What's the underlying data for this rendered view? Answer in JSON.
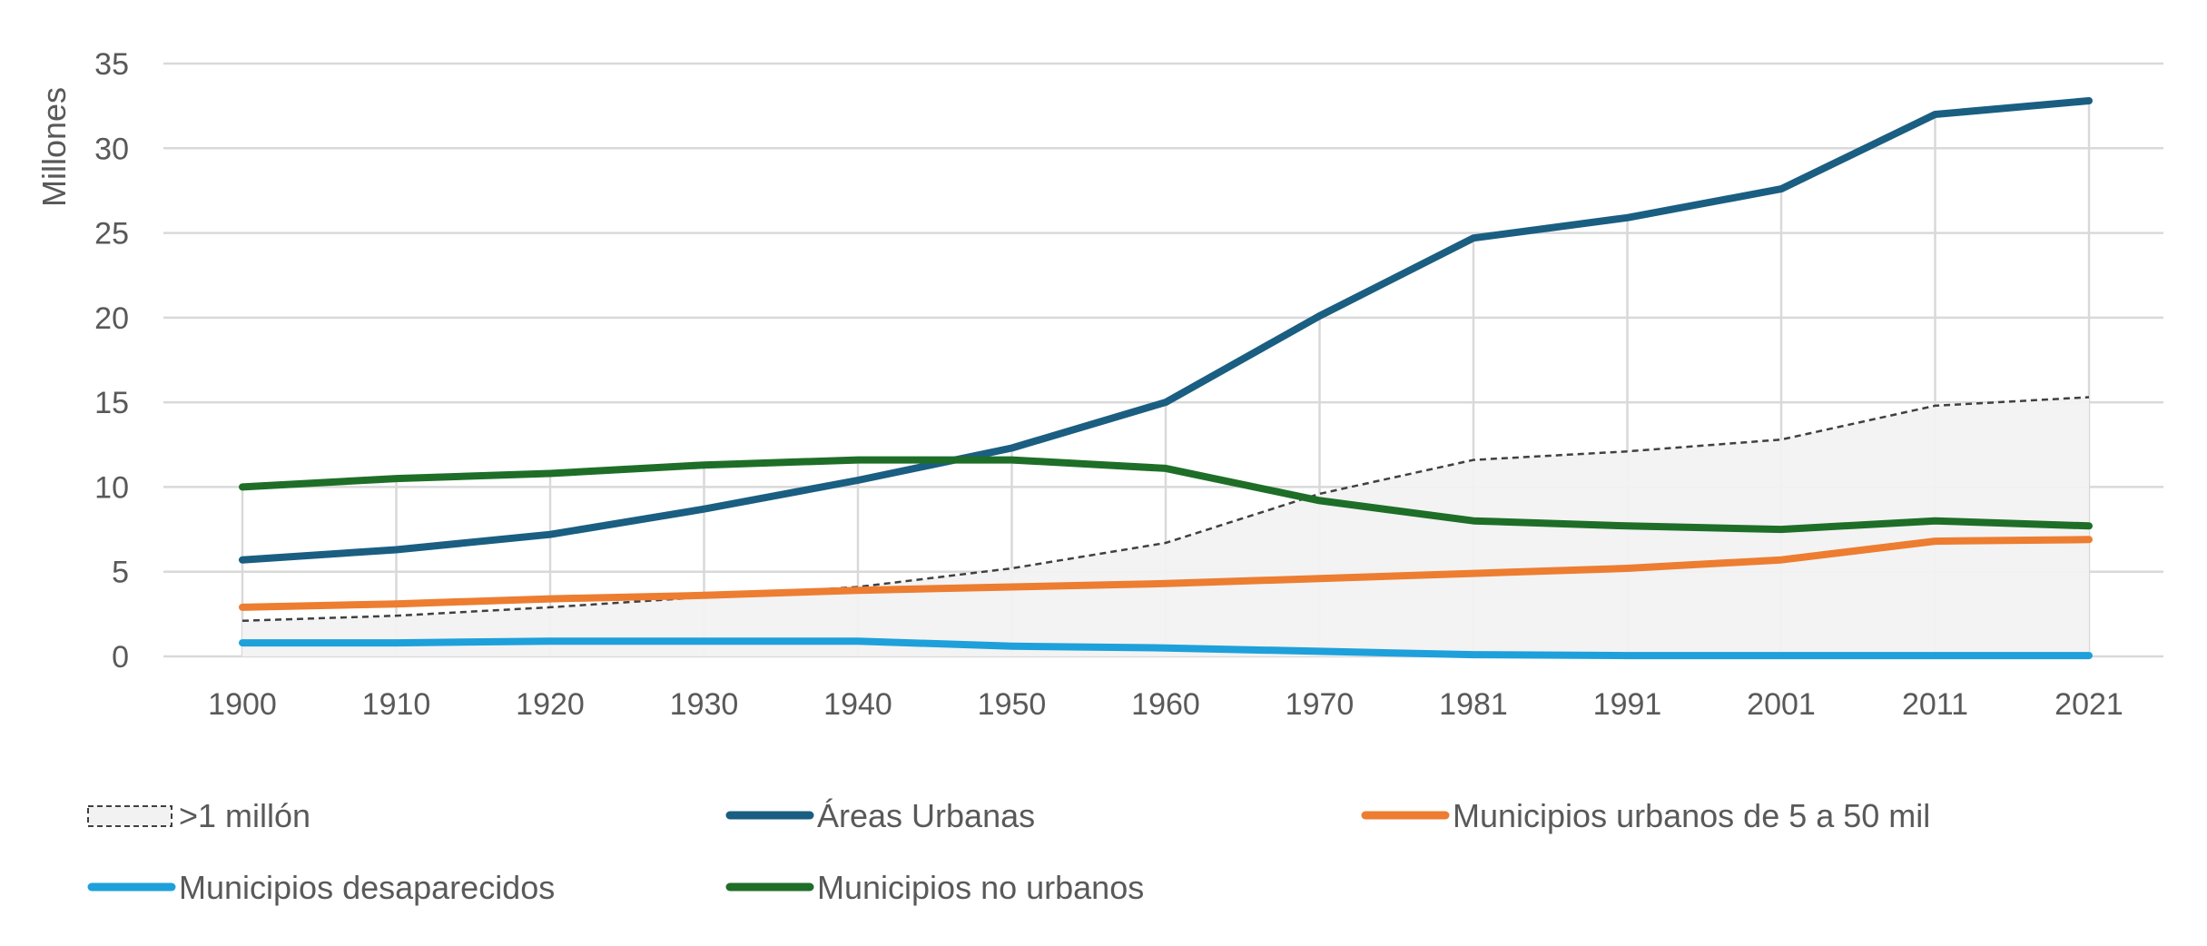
{
  "chart_data": {
    "type": "line",
    "title": "",
    "xlabel": "",
    "ylabel": "Millones",
    "ylim": [
      0,
      35
    ],
    "yticks": [
      0,
      5,
      10,
      15,
      20,
      25,
      30,
      35
    ],
    "grid": true,
    "legend_position": "bottom",
    "categories": [
      "1900",
      "1910",
      "1920",
      "1930",
      "1940",
      "1950",
      "1960",
      "1970",
      "1981",
      "1991",
      "2001",
      "2011",
      "2021"
    ],
    "series": [
      {
        "name": ">1 millón",
        "style": "area-dashed",
        "color": "#404040",
        "fill": "#f2f2f2",
        "values": [
          2.1,
          2.4,
          2.9,
          3.5,
          4.1,
          5.2,
          6.7,
          9.6,
          11.6,
          12.1,
          12.8,
          14.8,
          15.3
        ]
      },
      {
        "name": "Áreas Urbanas",
        "style": "line",
        "color": "#1a5e82",
        "values": [
          5.7,
          6.3,
          7.2,
          8.7,
          10.4,
          12.3,
          15.0,
          20.1,
          24.7,
          25.9,
          27.6,
          32.0,
          32.8
        ]
      },
      {
        "name": "Municipios urbanos de 5 a 50 mil",
        "style": "line",
        "color": "#ed7d31",
        "values": [
          2.9,
          3.1,
          3.4,
          3.6,
          3.9,
          4.1,
          4.3,
          4.6,
          4.9,
          5.2,
          5.7,
          6.8,
          6.9
        ]
      },
      {
        "name": "Municipios desaparecidos",
        "style": "line",
        "color": "#1ea0db",
        "values": [
          0.8,
          0.8,
          0.9,
          0.9,
          0.9,
          0.6,
          0.5,
          0.3,
          0.1,
          0.05,
          0.05,
          0.05,
          0.05
        ]
      },
      {
        "name": "Municipios no urbanos",
        "style": "line",
        "color": "#1e6e28",
        "values": [
          10.0,
          10.5,
          10.8,
          11.3,
          11.6,
          11.6,
          11.1,
          9.2,
          8.0,
          7.7,
          7.5,
          8.0,
          7.7
        ]
      }
    ]
  }
}
